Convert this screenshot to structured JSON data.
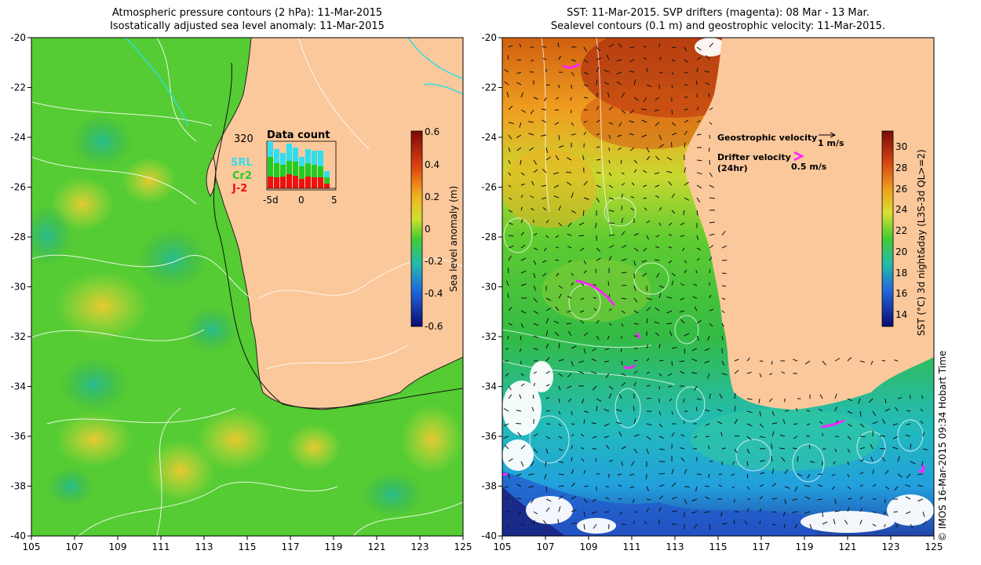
{
  "left_panel": {
    "title_line1": "Atmospheric pressure contours (2 hPa): 11-Mar-2015",
    "title_line2": "Isostatically adjusted sea level anomaly: 11-Mar-2015",
    "colorbar_title": "Sea level anomaly (m)",
    "colorbar_ticks": [
      "0.6",
      "0.4",
      "0.2",
      "0",
      "-0.2",
      "-0.4",
      "-0.6"
    ],
    "inset": {
      "title": "Data count",
      "count_label": "320",
      "legend": [
        {
          "label": "SRL",
          "color": "#33ddee"
        },
        {
          "label": "Cr2",
          "color": "#22cc22"
        },
        {
          "label": "J-2",
          "color": "#ee1111"
        }
      ],
      "x_ticks": [
        "-5d",
        "0",
        "5"
      ]
    }
  },
  "right_panel": {
    "title_line1": "SST: 11-Mar-2015. SVP drifters (magenta): 08 Mar - 13 Mar.",
    "title_line2": "Sealevel contours (0.1 m) and geostrophic velocity: 11-Mar-2015.",
    "colorbar_title": "SST (°C) 3d night&day (L3S-3d QL>=2)",
    "colorbar_ticks": [
      "30",
      "28",
      "26",
      "24",
      "22",
      "20",
      "18",
      "16",
      "14"
    ],
    "legend": {
      "geostrophic_label": "Geostrophic velocity",
      "geostrophic_scale": "1 m/s",
      "drifter_label": "Drifter velocity",
      "drifter_sub": "(24hr)",
      "drifter_scale": "0.5 m/s"
    }
  },
  "axes": {
    "lon_ticks": [
      "105",
      "107",
      "109",
      "111",
      "113",
      "115",
      "117",
      "119",
      "121",
      "123",
      "125"
    ],
    "lat_ticks": [
      "-20",
      "-22",
      "-24",
      "-26",
      "-28",
      "-30",
      "-32",
      "-34",
      "-36",
      "-38",
      "-40"
    ]
  },
  "copyright": "© IMOS 16-Mar-2015 09:34 Hobart Time",
  "colors": {
    "land": "#fbc89b",
    "ssl_mid": "#55cc33",
    "ssl_high": "#e8d830",
    "ssl_low": "#33aa66",
    "sst_warm": "#cc4400",
    "sst_mid": "#33cc33",
    "sst_cool": "#22bbcc",
    "drifter": "#ff22ff"
  }
}
